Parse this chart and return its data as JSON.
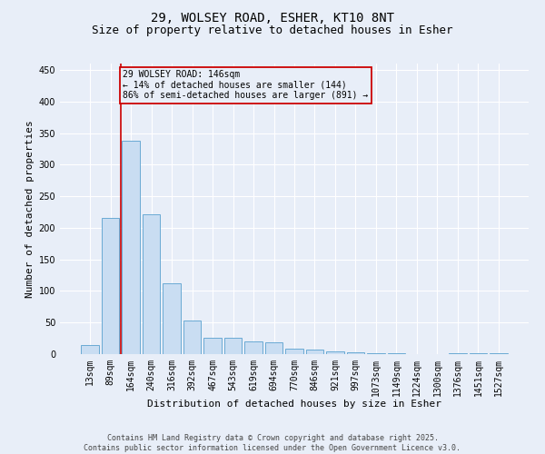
{
  "title_line1": "29, WOLSEY ROAD, ESHER, KT10 8NT",
  "title_line2": "Size of property relative to detached houses in Esher",
  "xlabel": "Distribution of detached houses by size in Esher",
  "ylabel": "Number of detached properties",
  "categories": [
    "13sqm",
    "89sqm",
    "164sqm",
    "240sqm",
    "316sqm",
    "392sqm",
    "467sqm",
    "543sqm",
    "619sqm",
    "694sqm",
    "770sqm",
    "846sqm",
    "921sqm",
    "997sqm",
    "1073sqm",
    "1149sqm",
    "1224sqm",
    "1300sqm",
    "1376sqm",
    "1451sqm",
    "1527sqm"
  ],
  "values": [
    15,
    215,
    338,
    222,
    112,
    53,
    26,
    26,
    20,
    18,
    9,
    7,
    5,
    3,
    1,
    2,
    0,
    0,
    1,
    1,
    1
  ],
  "bar_color": "#c9ddf2",
  "bar_edge_color": "#6aaad4",
  "background_color": "#e8eef8",
  "grid_color": "#ffffff",
  "vline_x": 1.5,
  "vline_color": "#cc0000",
  "annotation_text": "29 WOLSEY ROAD: 146sqm\n← 14% of detached houses are smaller (144)\n86% of semi-detached houses are larger (891) →",
  "annotation_box_color": "#cc0000",
  "ylim": [
    0,
    460
  ],
  "yticks": [
    0,
    50,
    100,
    150,
    200,
    250,
    300,
    350,
    400,
    450
  ],
  "footnote": "Contains HM Land Registry data © Crown copyright and database right 2025.\nContains public sector information licensed under the Open Government Licence v3.0.",
  "title_fontsize": 10,
  "subtitle_fontsize": 9,
  "label_fontsize": 8,
  "tick_fontsize": 7,
  "annot_fontsize": 7,
  "footnote_fontsize": 6
}
